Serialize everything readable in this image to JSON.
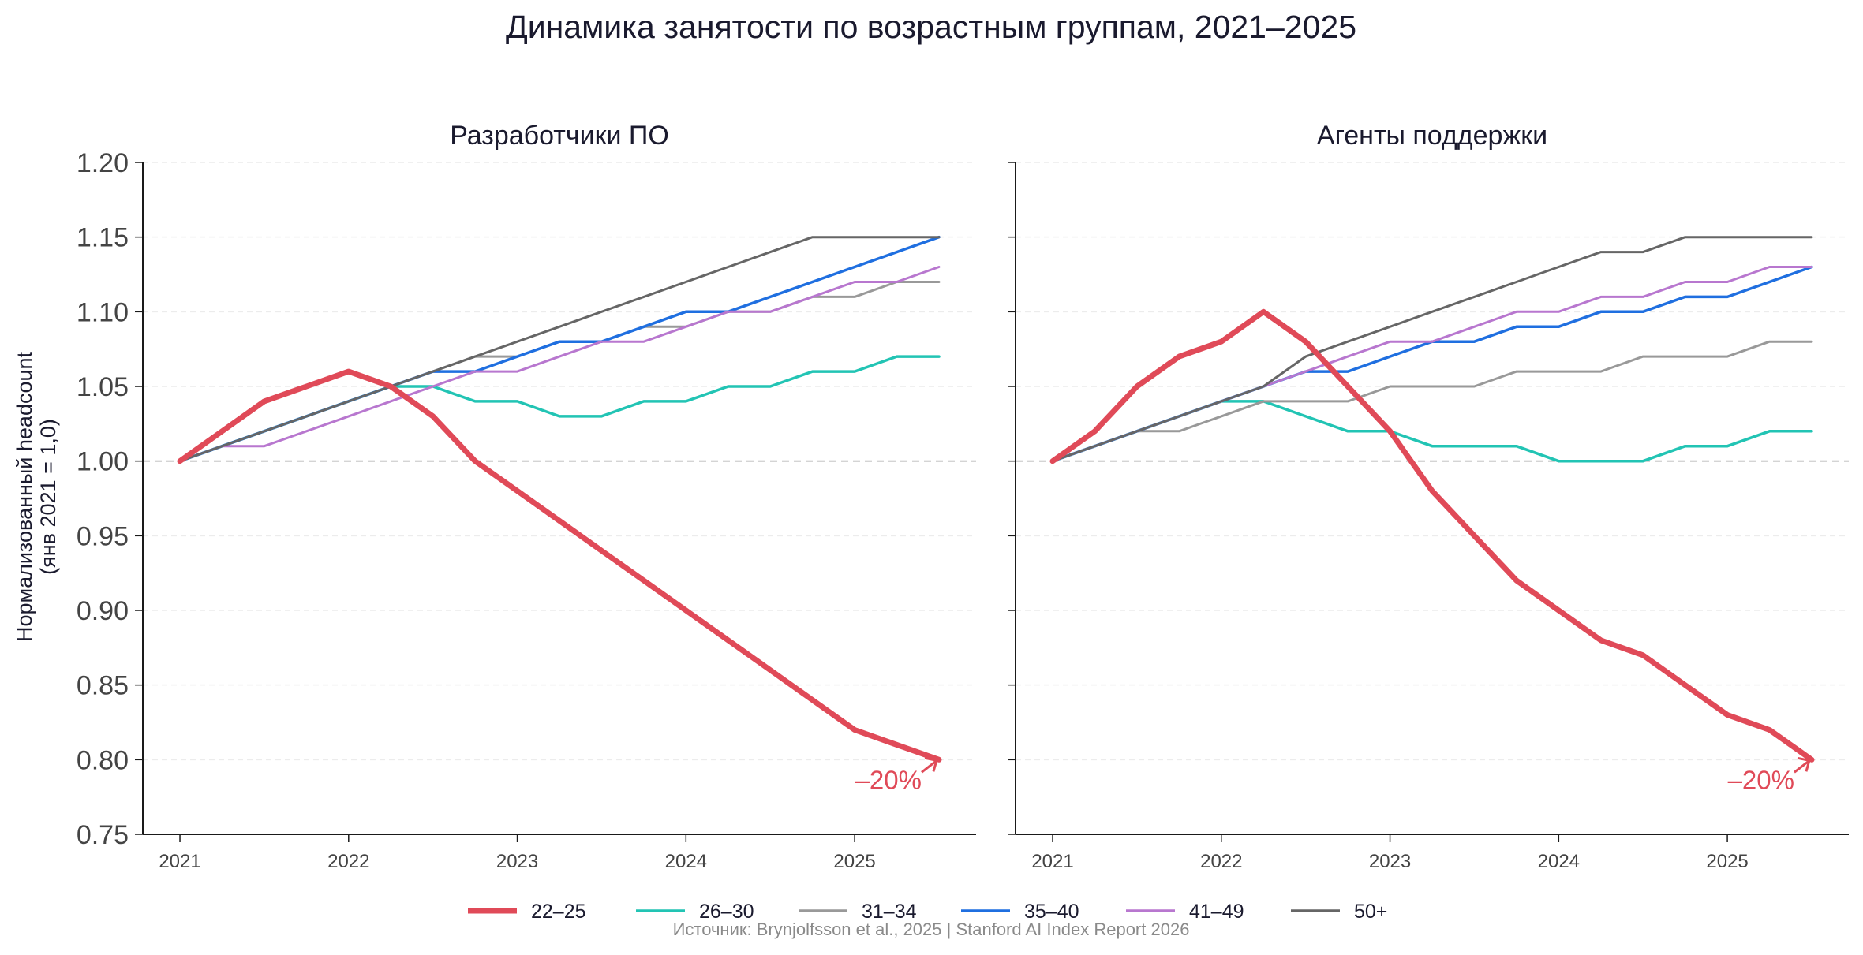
{
  "title": "Динамика занятости по возрастным группам, 2021–2025",
  "source_note": "Источник: Brynjolfsson et al., 2025 | Stanford AI Index Report 2026",
  "ylabel_line1": "Нормализованный headcount",
  "ylabel_line2": "(янв 2021 = 1,0)",
  "colors": {
    "22–25": "#e04a58",
    "26–30": "#22c4b4",
    "31–34": "#999999",
    "35–40": "#1f6fe0",
    "41–49": "#b877cf",
    "50+": "#666666",
    "baseline": "#bbbbbb"
  },
  "legend": [
    {
      "name": "22–25"
    },
    {
      "name": "26–30"
    },
    {
      "name": "31–34"
    },
    {
      "name": "35–40"
    },
    {
      "name": "41–49"
    },
    {
      "name": "50+"
    }
  ],
  "chart_data": [
    {
      "type": "line",
      "title": "Разработчики ПО",
      "ylim": [
        0.75,
        1.2
      ],
      "yticks": [
        "1.20",
        "1.15",
        "1.10",
        "1.05",
        "1.00",
        "0.95",
        "0.90",
        "0.85",
        "0.80",
        "0.75"
      ],
      "xlim": [
        2020.78,
        2025.72
      ],
      "xticks": [
        "2021",
        "2022",
        "2023",
        "2024",
        "2025"
      ],
      "baseline": 1.0,
      "grid": "horizontal dashed",
      "x": [
        2021.0,
        2021.25,
        2021.5,
        2021.75,
        2022.0,
        2022.25,
        2022.5,
        2022.75,
        2023.0,
        2023.25,
        2023.5,
        2023.75,
        2024.0,
        2024.25,
        2024.5,
        2024.75,
        2025.0,
        2025.25,
        2025.5
      ],
      "series": [
        {
          "name": "22–25",
          "values": [
            1.0,
            1.02,
            1.04,
            1.05,
            1.06,
            1.05,
            1.03,
            1.0,
            0.98,
            0.96,
            0.94,
            0.92,
            0.9,
            0.88,
            0.86,
            0.84,
            0.82,
            0.81,
            0.8
          ]
        },
        {
          "name": "26–30",
          "values": [
            1.0,
            1.01,
            1.02,
            1.03,
            1.04,
            1.05,
            1.05,
            1.04,
            1.04,
            1.03,
            1.03,
            1.04,
            1.04,
            1.05,
            1.05,
            1.06,
            1.06,
            1.07,
            1.07
          ]
        },
        {
          "name": "31–34",
          "values": [
            1.0,
            1.01,
            1.02,
            1.03,
            1.04,
            1.05,
            1.06,
            1.07,
            1.07,
            1.08,
            1.08,
            1.09,
            1.09,
            1.1,
            1.1,
            1.11,
            1.11,
            1.12,
            1.12
          ]
        },
        {
          "name": "35–40",
          "values": [
            1.0,
            1.01,
            1.02,
            1.03,
            1.04,
            1.05,
            1.06,
            1.06,
            1.07,
            1.08,
            1.08,
            1.09,
            1.1,
            1.1,
            1.11,
            1.12,
            1.13,
            1.14,
            1.15
          ]
        },
        {
          "name": "41–49",
          "values": [
            1.0,
            1.01,
            1.01,
            1.02,
            1.03,
            1.04,
            1.05,
            1.06,
            1.06,
            1.07,
            1.08,
            1.08,
            1.09,
            1.1,
            1.1,
            1.11,
            1.12,
            1.12,
            1.13
          ]
        },
        {
          "name": "50+",
          "values": [
            1.0,
            1.01,
            1.02,
            1.03,
            1.04,
            1.05,
            1.06,
            1.07,
            1.08,
            1.09,
            1.1,
            1.11,
            1.12,
            1.13,
            1.14,
            1.15,
            1.15,
            1.15,
            1.15
          ]
        }
      ],
      "annotation": {
        "text": "–20%",
        "x": 2025.5,
        "y": 0.8
      }
    },
    {
      "type": "line",
      "title": "Агенты поддержки",
      "ylim": [
        0.75,
        1.2
      ],
      "yticks": [],
      "xlim": [
        2020.78,
        2025.72
      ],
      "xticks": [
        "2021",
        "2022",
        "2023",
        "2024",
        "2025"
      ],
      "baseline": 1.0,
      "grid": "horizontal dashed",
      "x": [
        2021.0,
        2021.25,
        2021.5,
        2021.75,
        2022.0,
        2022.25,
        2022.5,
        2022.75,
        2023.0,
        2023.25,
        2023.5,
        2023.75,
        2024.0,
        2024.25,
        2024.5,
        2024.75,
        2025.0,
        2025.25,
        2025.5
      ],
      "series": [
        {
          "name": "22–25",
          "values": [
            1.0,
            1.02,
            1.05,
            1.07,
            1.08,
            1.1,
            1.08,
            1.05,
            1.02,
            0.98,
            0.95,
            0.92,
            0.9,
            0.88,
            0.87,
            0.85,
            0.83,
            0.82,
            0.8
          ]
        },
        {
          "name": "26–30",
          "values": [
            1.0,
            1.01,
            1.02,
            1.03,
            1.04,
            1.04,
            1.03,
            1.02,
            1.02,
            1.01,
            1.01,
            1.01,
            1.0,
            1.0,
            1.0,
            1.01,
            1.01,
            1.02,
            1.02
          ]
        },
        {
          "name": "31–34",
          "values": [
            1.0,
            1.01,
            1.02,
            1.02,
            1.03,
            1.04,
            1.04,
            1.04,
            1.05,
            1.05,
            1.05,
            1.06,
            1.06,
            1.06,
            1.07,
            1.07,
            1.07,
            1.08,
            1.08
          ]
        },
        {
          "name": "35–40",
          "values": [
            1.0,
            1.01,
            1.02,
            1.03,
            1.04,
            1.05,
            1.06,
            1.06,
            1.07,
            1.08,
            1.08,
            1.09,
            1.09,
            1.1,
            1.1,
            1.11,
            1.11,
            1.12,
            1.13
          ]
        },
        {
          "name": "41–49",
          "values": [
            1.0,
            1.01,
            1.02,
            1.03,
            1.04,
            1.05,
            1.06,
            1.07,
            1.08,
            1.08,
            1.09,
            1.1,
            1.1,
            1.11,
            1.11,
            1.12,
            1.12,
            1.13,
            1.13
          ]
        },
        {
          "name": "50+",
          "values": [
            1.0,
            1.01,
            1.02,
            1.03,
            1.04,
            1.05,
            1.07,
            1.08,
            1.09,
            1.1,
            1.11,
            1.12,
            1.13,
            1.14,
            1.14,
            1.15,
            1.15,
            1.15,
            1.15
          ]
        }
      ],
      "annotation": {
        "text": "–20%",
        "x": 2025.5,
        "y": 0.8
      }
    }
  ]
}
